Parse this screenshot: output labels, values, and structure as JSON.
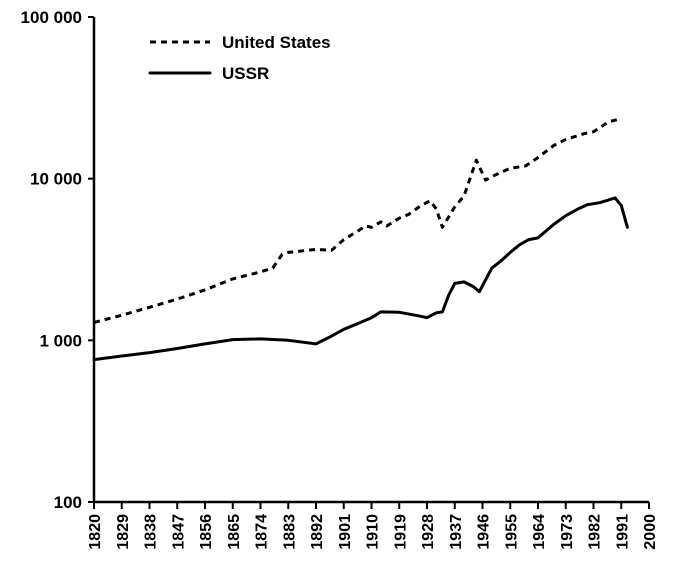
{
  "chart_data": {
    "type": "line",
    "title": "",
    "xlabel": "",
    "ylabel": "",
    "x_scale": "linear",
    "y_scale": "log",
    "xlim": [
      1820,
      2000
    ],
    "ylim": [
      100,
      100000
    ],
    "grid": false,
    "legend_position": "top-left",
    "x_ticks": [
      1820,
      1829,
      1838,
      1847,
      1856,
      1865,
      1874,
      1883,
      1892,
      1901,
      1910,
      1919,
      1928,
      1937,
      1946,
      1955,
      1964,
      1973,
      1982,
      1991,
      2000
    ],
    "x_tick_labels": [
      "1820",
      "1829",
      "1838",
      "1847",
      "1856",
      "1865",
      "1874",
      "1883",
      "1892",
      "1901",
      "1910",
      "1919",
      "1928",
      "1937",
      "1946",
      "1955",
      "1964",
      "1973",
      "1982",
      "1991",
      "2000"
    ],
    "y_ticks": [
      100,
      1000,
      10000,
      100000
    ],
    "y_tick_labels": [
      "100",
      "1 000",
      "10 000",
      "100 000"
    ],
    "series": [
      {
        "name": "United States",
        "style": "dashed",
        "color": "#000000",
        "points": [
          {
            "x": 1820,
            "y": 1290
          },
          {
            "x": 1829,
            "y": 1430
          },
          {
            "x": 1838,
            "y": 1600
          },
          {
            "x": 1847,
            "y": 1800
          },
          {
            "x": 1856,
            "y": 2050
          },
          {
            "x": 1865,
            "y": 2400
          },
          {
            "x": 1874,
            "y": 2650
          },
          {
            "x": 1878,
            "y": 2800
          },
          {
            "x": 1881,
            "y": 3400
          },
          {
            "x": 1883,
            "y": 3500
          },
          {
            "x": 1892,
            "y": 3650
          },
          {
            "x": 1897,
            "y": 3600
          },
          {
            "x": 1901,
            "y": 4200
          },
          {
            "x": 1906,
            "y": 4800
          },
          {
            "x": 1908,
            "y": 5100
          },
          {
            "x": 1910,
            "y": 5000
          },
          {
            "x": 1913,
            "y": 5400
          },
          {
            "x": 1915,
            "y": 5100
          },
          {
            "x": 1919,
            "y": 5700
          },
          {
            "x": 1922,
            "y": 6000
          },
          {
            "x": 1926,
            "y": 6800
          },
          {
            "x": 1929,
            "y": 7300
          },
          {
            "x": 1931,
            "y": 6500
          },
          {
            "x": 1933,
            "y": 5000
          },
          {
            "x": 1937,
            "y": 6700
          },
          {
            "x": 1940,
            "y": 7800
          },
          {
            "x": 1944,
            "y": 13000
          },
          {
            "x": 1947,
            "y": 9800
          },
          {
            "x": 1950,
            "y": 10500
          },
          {
            "x": 1955,
            "y": 11600
          },
          {
            "x": 1960,
            "y": 12000
          },
          {
            "x": 1964,
            "y": 13500
          },
          {
            "x": 1969,
            "y": 16000
          },
          {
            "x": 1973,
            "y": 17500
          },
          {
            "x": 1979,
            "y": 19000
          },
          {
            "x": 1982,
            "y": 19500
          },
          {
            "x": 1987,
            "y": 22500
          },
          {
            "x": 1991,
            "y": 23500
          }
        ]
      },
      {
        "name": "USSR",
        "style": "solid",
        "color": "#000000",
        "points": [
          {
            "x": 1820,
            "y": 760
          },
          {
            "x": 1829,
            "y": 800
          },
          {
            "x": 1838,
            "y": 840
          },
          {
            "x": 1847,
            "y": 890
          },
          {
            "x": 1856,
            "y": 950
          },
          {
            "x": 1865,
            "y": 1010
          },
          {
            "x": 1874,
            "y": 1020
          },
          {
            "x": 1883,
            "y": 1000
          },
          {
            "x": 1892,
            "y": 950
          },
          {
            "x": 1897,
            "y": 1060
          },
          {
            "x": 1901,
            "y": 1170
          },
          {
            "x": 1906,
            "y": 1280
          },
          {
            "x": 1910,
            "y": 1380
          },
          {
            "x": 1913,
            "y": 1500
          },
          {
            "x": 1919,
            "y": 1490
          },
          {
            "x": 1925,
            "y": 1420
          },
          {
            "x": 1928,
            "y": 1380
          },
          {
            "x": 1931,
            "y": 1480
          },
          {
            "x": 1933,
            "y": 1500
          },
          {
            "x": 1935,
            "y": 1900
          },
          {
            "x": 1937,
            "y": 2250
          },
          {
            "x": 1940,
            "y": 2300
          },
          {
            "x": 1943,
            "y": 2150
          },
          {
            "x": 1945,
            "y": 2000
          },
          {
            "x": 1949,
            "y": 2800
          },
          {
            "x": 1952,
            "y": 3100
          },
          {
            "x": 1955,
            "y": 3500
          },
          {
            "x": 1958,
            "y": 3900
          },
          {
            "x": 1961,
            "y": 4200
          },
          {
            "x": 1964,
            "y": 4300
          },
          {
            "x": 1969,
            "y": 5200
          },
          {
            "x": 1973,
            "y": 5900
          },
          {
            "x": 1977,
            "y": 6500
          },
          {
            "x": 1980,
            "y": 6900
          },
          {
            "x": 1984,
            "y": 7100
          },
          {
            "x": 1989,
            "y": 7600
          },
          {
            "x": 1991,
            "y": 6800
          },
          {
            "x": 1993,
            "y": 5000
          }
        ]
      }
    ]
  }
}
